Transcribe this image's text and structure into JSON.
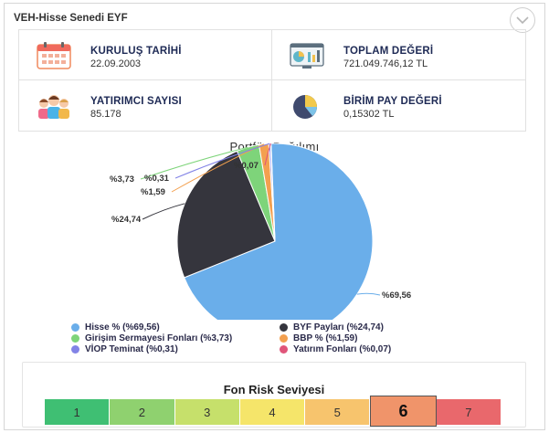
{
  "header": {
    "title": "VEH-Hisse Senedi EYF",
    "collapse_icon": "chevron-down-icon"
  },
  "info": [
    {
      "label": "KURULUŞ TARİHİ",
      "value": "22.09.2003",
      "icon": "calendar-icon"
    },
    {
      "label": "TOPLAM DEĞERİ",
      "value": "721.049.746,12 TL",
      "icon": "dashboard-chart-icon"
    },
    {
      "label": "YATIRIMCI SAYISI",
      "value": "85.178",
      "icon": "people-icon"
    },
    {
      "label": "BİRİM PAY DEĞERİ",
      "value": "0,15302 TL",
      "icon": "pie-chart-icon"
    }
  ],
  "chart_data": {
    "type": "pie",
    "title": "Portföy Dağılımı",
    "slices": [
      {
        "name": "Hisse %",
        "value": 69.56,
        "label": "%69,56",
        "legend": "Hisse % (%69,56)",
        "color": "#6aaeea"
      },
      {
        "name": "BYF Payları",
        "value": 24.74,
        "label": "%24,74",
        "legend": "BYF Payları (%24,74)",
        "color": "#35353d"
      },
      {
        "name": "Girişim Sermayesi Fonları",
        "value": 3.73,
        "label": "%3,73",
        "legend": "Girişim Sermayesi Fonları (%3,73)",
        "color": "#7ed47a"
      },
      {
        "name": "BBP %",
        "value": 1.59,
        "label": "%1,59",
        "legend": "BBP % (%1,59)",
        "color": "#f3a04f"
      },
      {
        "name": "VİOP Teminat",
        "value": 0.31,
        "label": "%0,31",
        "legend": "VİOP Teminat (%0,31)",
        "color": "#8283e6"
      },
      {
        "name": "Yatırım Fonları",
        "value": 0.07,
        "label": "%0,07",
        "legend": "Yatırım Fonları (%0,07)",
        "color": "#e0557a"
      }
    ],
    "legend_position": "bottom"
  },
  "risk": {
    "title": "Fon Risk Seviyesi",
    "levels": [
      "1",
      "2",
      "3",
      "4",
      "5",
      "6",
      "7"
    ],
    "colors": [
      "#3fbf73",
      "#8fd16f",
      "#c6e06b",
      "#f5e56a",
      "#f7c46d",
      "#f0946a",
      "#e9686c"
    ],
    "selected": 6
  }
}
